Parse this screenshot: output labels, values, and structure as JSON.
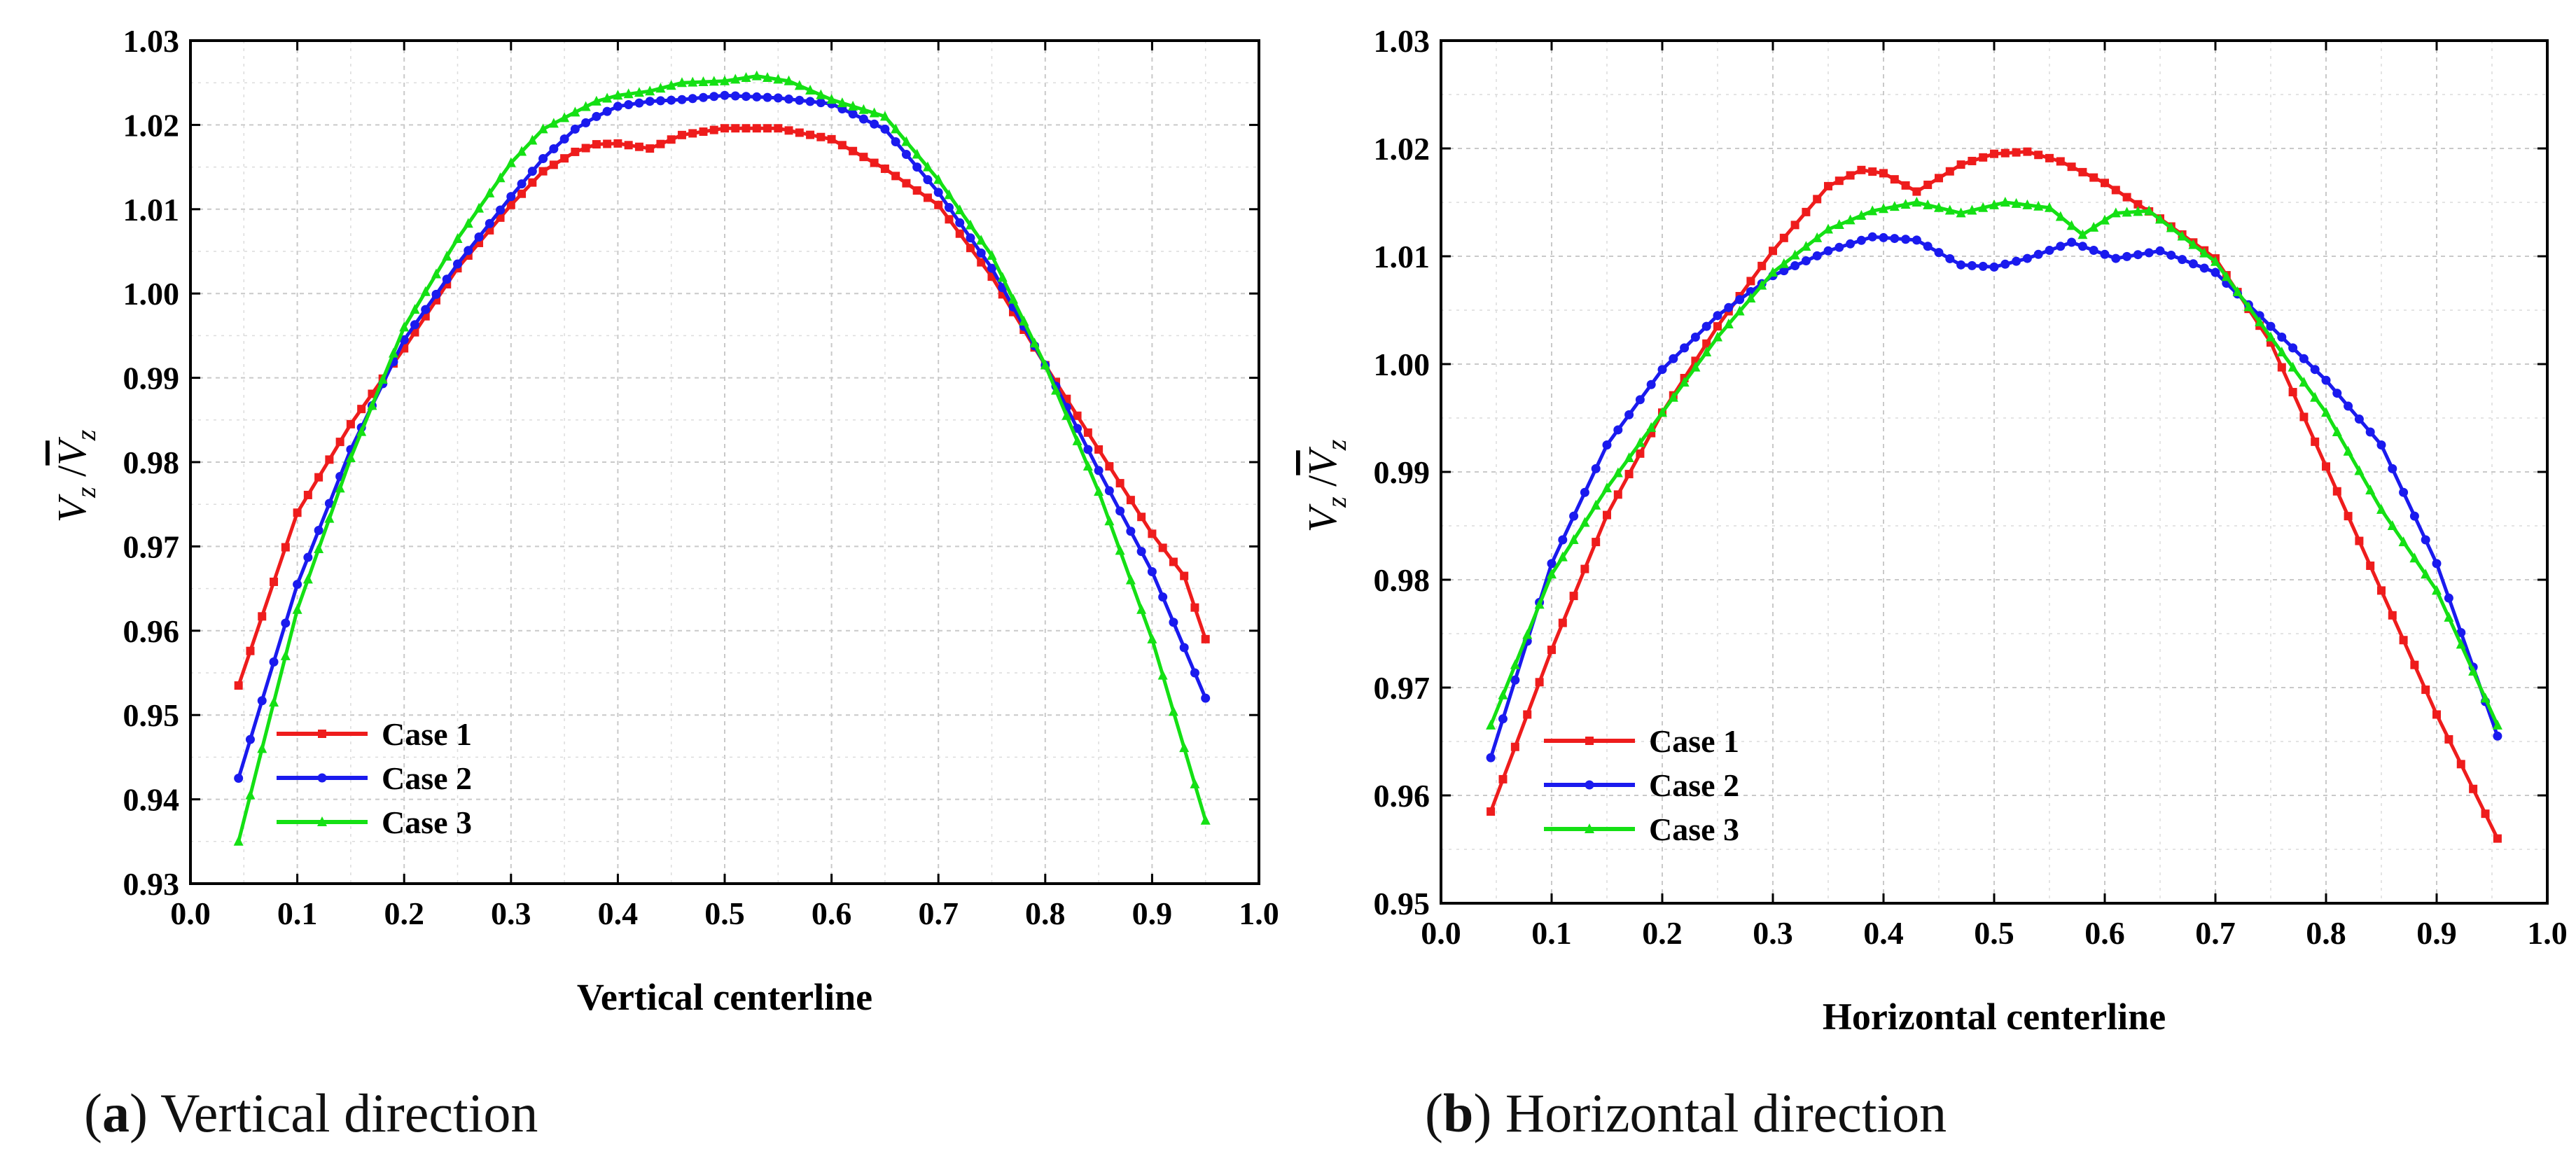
{
  "chart_data": [
    {
      "type": "line",
      "panel_label": "a",
      "caption": "Vertical direction",
      "xlabel": "Vertical centerline",
      "ylabel_main": "V",
      "ylabel_sub": "z",
      "xlim": [
        0.0,
        1.0
      ],
      "ylim": [
        0.93,
        1.03
      ],
      "x_ticks": [
        "0.0",
        "0.1",
        "0.2",
        "0.3",
        "0.4",
        "0.5",
        "0.6",
        "0.7",
        "0.8",
        "0.9",
        "1.0"
      ],
      "y_ticks": [
        "0.93",
        "0.94",
        "0.95",
        "0.96",
        "0.97",
        "0.98",
        "0.99",
        "1.00",
        "1.01",
        "1.02",
        "1.03"
      ],
      "grid": true,
      "legend_position": "bottom-left",
      "series": [
        {
          "name": "Case 1",
          "color": "#ee1c1c",
          "marker": "square",
          "x": [
            0.045,
            0.1,
            0.15,
            0.2,
            0.25,
            0.3,
            0.33,
            0.36,
            0.38,
            0.4,
            0.43,
            0.46,
            0.5,
            0.55,
            0.6,
            0.65,
            0.7,
            0.75,
            0.8,
            0.85,
            0.9,
            0.93,
            0.95
          ],
          "y": [
            0.9535,
            0.974,
            0.9845,
            0.9935,
            1.003,
            1.0105,
            1.0145,
            1.0168,
            1.0177,
            1.0178,
            1.0172,
            1.0188,
            1.0196,
            1.0196,
            1.0183,
            1.0148,
            1.0105,
            1.002,
            0.9915,
            0.9815,
            0.9715,
            0.9665,
            0.959
          ]
        },
        {
          "name": "Case 2",
          "color": "#1a1aee",
          "marker": "circle",
          "x": [
            0.045,
            0.1,
            0.15,
            0.2,
            0.25,
            0.3,
            0.33,
            0.36,
            0.38,
            0.4,
            0.43,
            0.46,
            0.5,
            0.55,
            0.6,
            0.65,
            0.7,
            0.75,
            0.8,
            0.85,
            0.9,
            0.95
          ],
          "y": [
            0.9425,
            0.9655,
            0.9815,
            0.9945,
            1.0035,
            1.0115,
            1.016,
            1.0195,
            1.021,
            1.0222,
            1.0228,
            1.023,
            1.0235,
            1.0232,
            1.0225,
            1.0195,
            1.012,
            1.003,
            0.9915,
            0.979,
            0.967,
            0.952
          ]
        },
        {
          "name": "Case 3",
          "color": "#14e014",
          "marker": "triangle",
          "x": [
            0.045,
            0.1,
            0.15,
            0.2,
            0.25,
            0.3,
            0.33,
            0.36,
            0.38,
            0.4,
            0.43,
            0.46,
            0.5,
            0.53,
            0.56,
            0.6,
            0.65,
            0.7,
            0.75,
            0.8,
            0.85,
            0.9,
            0.95
          ],
          "y": [
            0.935,
            0.9625,
            0.9805,
            0.996,
            1.0065,
            1.0155,
            1.0195,
            1.0215,
            1.0228,
            1.0235,
            1.024,
            1.025,
            1.0252,
            1.0258,
            1.0252,
            1.023,
            1.021,
            1.0135,
            1.0045,
            0.9915,
            0.9765,
            0.959,
            0.9375
          ]
        }
      ]
    },
    {
      "type": "line",
      "panel_label": "b",
      "caption": "Horizontal direction",
      "xlabel": "Horizontal centerline",
      "ylabel_main": "V",
      "ylabel_sub": "z",
      "xlim": [
        0.0,
        1.0
      ],
      "ylim": [
        0.95,
        1.03
      ],
      "x_ticks": [
        "0.0",
        "0.1",
        "0.2",
        "0.3",
        "0.4",
        "0.5",
        "0.6",
        "0.7",
        "0.8",
        "0.9",
        "1.0"
      ],
      "y_ticks": [
        "0.95",
        "0.96",
        "0.97",
        "0.98",
        "0.99",
        "1.00",
        "1.01",
        "1.02",
        "1.03"
      ],
      "grid": true,
      "legend_position": "bottom-left",
      "series": [
        {
          "name": "Case 1",
          "color": "#ee1c1c",
          "marker": "square",
          "x": [
            0.045,
            0.1,
            0.15,
            0.2,
            0.25,
            0.3,
            0.35,
            0.38,
            0.4,
            0.43,
            0.47,
            0.5,
            0.53,
            0.56,
            0.6,
            0.65,
            0.7,
            0.75,
            0.8,
            0.85,
            0.9,
            0.955
          ],
          "y": [
            0.9585,
            0.9735,
            0.986,
            0.9955,
            1.0035,
            1.0105,
            1.0165,
            1.018,
            1.0177,
            1.016,
            1.0185,
            1.0195,
            1.0197,
            1.0188,
            1.0168,
            1.0135,
            1.0098,
            1.002,
            0.9905,
            0.979,
            0.9675,
            0.956
          ]
        },
        {
          "name": "Case 2",
          "color": "#1a1aee",
          "marker": "circle",
          "x": [
            0.045,
            0.1,
            0.15,
            0.2,
            0.25,
            0.3,
            0.35,
            0.39,
            0.43,
            0.47,
            0.5,
            0.53,
            0.57,
            0.61,
            0.65,
            0.7,
            0.75,
            0.8,
            0.85,
            0.9,
            0.955
          ],
          "y": [
            0.9635,
            0.9815,
            0.9925,
            0.9995,
            1.0045,
            1.0082,
            1.0105,
            1.0118,
            1.0115,
            1.0092,
            1.009,
            1.0098,
            1.0113,
            1.0098,
            1.0105,
            1.0085,
            1.0035,
            0.9985,
            0.9925,
            0.9815,
            0.9655
          ]
        },
        {
          "name": "Case 3",
          "color": "#14e014",
          "marker": "triangle",
          "x": [
            0.045,
            0.1,
            0.15,
            0.2,
            0.25,
            0.3,
            0.35,
            0.39,
            0.43,
            0.47,
            0.51,
            0.55,
            0.58,
            0.61,
            0.64,
            0.7,
            0.75,
            0.8,
            0.85,
            0.9,
            0.955
          ],
          "y": [
            0.9665,
            0.9805,
            0.9885,
            0.9955,
            1.0025,
            1.0085,
            1.0125,
            1.0142,
            1.015,
            1.014,
            1.015,
            1.0145,
            1.012,
            1.014,
            1.0142,
            1.0095,
            1.0025,
            0.9955,
            0.9865,
            0.979,
            0.9665
          ]
        }
      ]
    }
  ]
}
